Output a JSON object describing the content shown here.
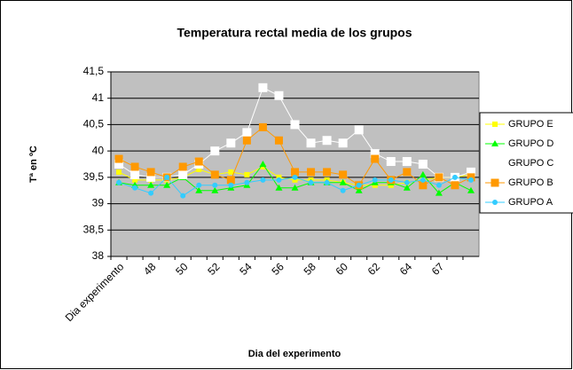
{
  "chart_data": {
    "type": "line",
    "title": "Temperatura rectal media de los grupos",
    "x_label": "Dia del experimento",
    "y_label": "Tª en ºC",
    "categories": [
      "Dia experimento",
      null,
      "48",
      null,
      "50",
      null,
      "52",
      null,
      "54",
      null,
      "56",
      null,
      "58",
      null,
      "60",
      null,
      "62",
      null,
      "64",
      null,
      "67",
      null,
      null
    ],
    "series": [
      {
        "name": "GRUPO E",
        "color": "#ffff00",
        "marker": "square-small",
        "values": [
          39.6,
          39.45,
          39.45,
          39.45,
          39.5,
          39.65,
          39.55,
          39.6,
          39.55,
          39.7,
          39.5,
          39.45,
          39.45,
          39.45,
          39.4,
          39.35,
          39.35,
          39.35,
          39.4,
          39.45,
          39.5,
          39.5,
          39.55
        ]
      },
      {
        "name": "GRUPO D",
        "color": "#00ff00",
        "marker": "triangle",
        "values": [
          39.4,
          39.35,
          39.35,
          39.35,
          39.5,
          39.25,
          39.25,
          39.3,
          39.35,
          39.75,
          39.3,
          39.3,
          39.4,
          39.4,
          39.4,
          39.25,
          39.4,
          39.4,
          39.3,
          39.55,
          39.2,
          39.4,
          39.25
        ]
      },
      {
        "name": "GRUPO C",
        "color": "#ffffff",
        "marker": "square",
        "values": [
          39.75,
          39.55,
          39.5,
          39.5,
          39.55,
          39.75,
          40.0,
          40.15,
          40.35,
          41.2,
          41.05,
          40.5,
          40.15,
          40.2,
          40.15,
          40.4,
          39.95,
          39.8,
          39.8,
          39.75,
          39.5,
          39.5,
          39.6
        ]
      },
      {
        "name": "GRUPO B",
        "color": "#ff9900",
        "marker": "square",
        "values": [
          39.85,
          39.7,
          39.6,
          39.5,
          39.7,
          39.8,
          39.55,
          39.45,
          40.2,
          40.45,
          40.2,
          39.6,
          39.6,
          39.6,
          39.55,
          39.35,
          39.85,
          39.45,
          39.6,
          39.35,
          39.5,
          39.35,
          39.5
        ]
      },
      {
        "name": "GRUPO A",
        "color": "#33ccff",
        "marker": "circle",
        "values": [
          39.4,
          39.3,
          39.2,
          39.5,
          39.15,
          39.35,
          39.35,
          39.35,
          39.4,
          39.45,
          39.45,
          39.5,
          39.4,
          39.4,
          39.25,
          39.35,
          39.45,
          39.45,
          39.4,
          39.45,
          39.35,
          39.5,
          39.45
        ]
      }
    ],
    "ylim": [
      38,
      41.5
    ],
    "yticks": [
      38,
      {
        "value": 38.5,
        "label": "38,5"
      },
      39,
      {
        "value": 39.5,
        "label": "39,5"
      },
      40,
      {
        "value": 40.5,
        "label": "40,5"
      },
      41,
      {
        "value": 41.5,
        "label": "41,5"
      }
    ],
    "grid": true,
    "legend": "right",
    "plot_background": "#c0c0c0"
  }
}
